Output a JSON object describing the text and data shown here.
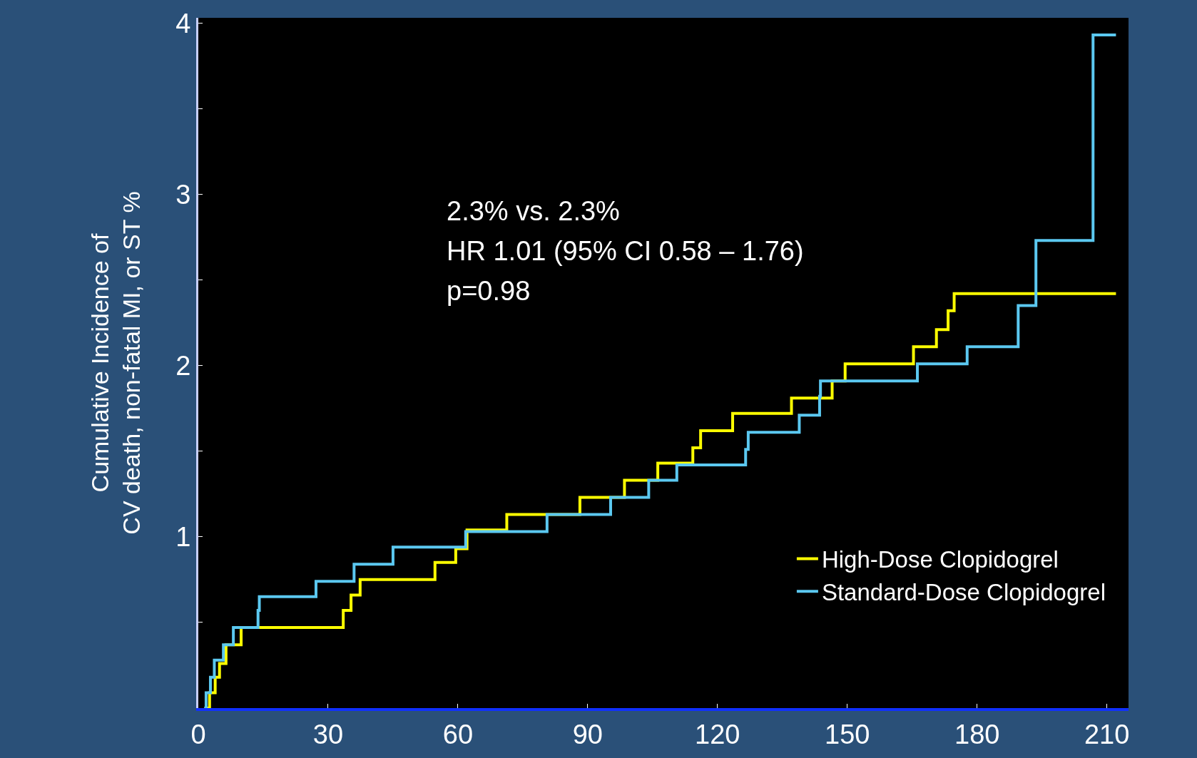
{
  "chart_data": {
    "type": "step",
    "ylabel": "Cumulative Incidence of\nCV death, non-fatal MI, or ST %",
    "annotations": [
      "2.3% vs. 2.3%",
      "HR 1.01 (95% CI 0.58 – 1.76)",
      "p=0.98"
    ],
    "series": [
      {
        "name": "High-Dose Clopidogrel",
        "color": "#ffff00",
        "x": [
          1.4,
          2.6,
          3.9,
          4.9,
          6.4,
          9.9,
          33.5,
          35.3,
          37.4,
          54.7,
          59.5,
          62.1,
          71.3,
          88.2,
          98.5,
          106.2,
          114.3,
          116.1,
          123.5,
          137.1,
          146.5,
          149.5,
          165.3,
          170.6,
          173.3,
          174.7,
          212.1
        ],
        "values": [
          0,
          0.09,
          0.18,
          0.26,
          0.37,
          0.47,
          0.57,
          0.66,
          0.75,
          0.85,
          0.93,
          1.04,
          1.13,
          1.23,
          1.33,
          1.43,
          1.52,
          1.62,
          1.72,
          1.81,
          1.91,
          2.01,
          2.11,
          2.21,
          2.32,
          2.42,
          2.42
        ]
      },
      {
        "name": "Standard-Dose Clopidogrel",
        "color": "#5bc8f0",
        "x": [
          1.4,
          1.8,
          2.8,
          3.7,
          5.8,
          8.1,
          13.8,
          14.1,
          27.2,
          36.0,
          45.0,
          61.8,
          80.6,
          95.3,
          104.1,
          110.6,
          126.5,
          127.1,
          138.9,
          143.6,
          143.8,
          166.2,
          177.7,
          189.5,
          193.6,
          206.8,
          212.1
        ],
        "values": [
          0,
          0.09,
          0.18,
          0.28,
          0.37,
          0.47,
          0.57,
          0.65,
          0.74,
          0.84,
          0.94,
          1.03,
          1.13,
          1.23,
          1.33,
          1.42,
          1.51,
          1.61,
          1.71,
          1.82,
          1.91,
          2.01,
          2.11,
          2.35,
          2.73,
          3.93,
          3.93
        ]
      }
    ],
    "xlim": [
      0,
      215
    ],
    "xticks": [
      0,
      30,
      60,
      90,
      120,
      150,
      180,
      210
    ],
    "ylim": [
      0,
      4.03
    ],
    "yticks": [
      {
        "value": 0.5,
        "label": null
      },
      1,
      {
        "value": 1.5,
        "label": null
      },
      2,
      {
        "value": 2.5,
        "label": null
      },
      3,
      {
        "value": 3.5,
        "label": null
      },
      4
    ],
    "grid": false,
    "legend": "bottom right",
    "marker": "none",
    "line_style": "solid"
  }
}
